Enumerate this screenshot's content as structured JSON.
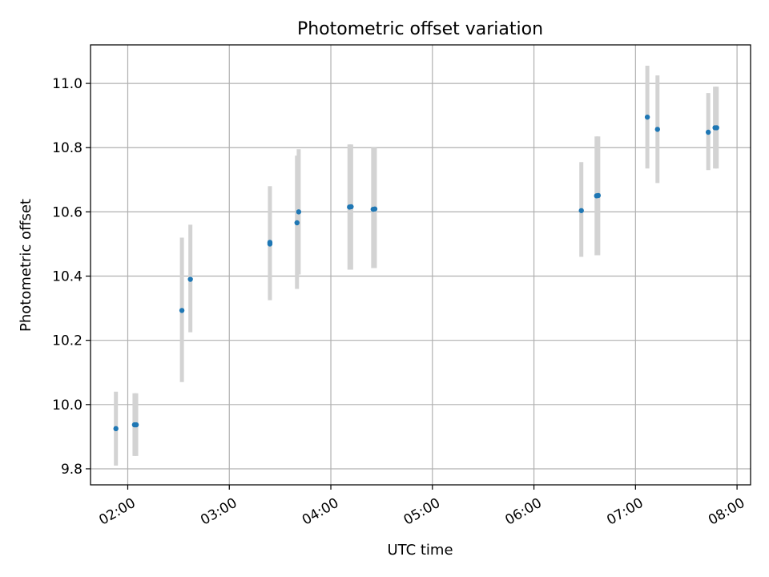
{
  "chart_data": {
    "type": "scatter",
    "title": "Photometric offset variation",
    "xlabel": "UTC time",
    "ylabel": "Photometric offset",
    "xlim": [
      "01:38",
      "08:08"
    ],
    "ylim": [
      9.75,
      11.12
    ],
    "grid": true,
    "x_ticks": [
      "02:00",
      "03:00",
      "04:00",
      "05:00",
      "06:00",
      "07:00",
      "08:00"
    ],
    "y_ticks": [
      "9.8",
      "10.0",
      "10.2",
      "10.4",
      "10.6",
      "10.8",
      "11.0"
    ],
    "colors": {
      "point": "#1f77b4",
      "errorbar": "#d3d3d3",
      "grid": "#b0b0b0"
    },
    "points": [
      {
        "x": "01:53",
        "y": 9.925,
        "ylow": 9.81,
        "yhigh": 10.04
      },
      {
        "x": "02:04",
        "y": 9.937,
        "ylow": 9.84,
        "yhigh": 10.035
      },
      {
        "x": "02:05",
        "y": 9.937,
        "ylow": 9.84,
        "yhigh": 10.035
      },
      {
        "x": "02:32",
        "y": 10.293,
        "ylow": 10.07,
        "yhigh": 10.52
      },
      {
        "x": "02:37",
        "y": 10.39,
        "ylow": 10.225,
        "yhigh": 10.56
      },
      {
        "x": "03:24",
        "y": 10.5,
        "ylow": 10.33,
        "yhigh": 10.68
      },
      {
        "x": "03:24",
        "y": 10.505,
        "ylow": 10.325,
        "yhigh": 10.68
      },
      {
        "x": "03:40",
        "y": 10.566,
        "ylow": 10.36,
        "yhigh": 10.775
      },
      {
        "x": "03:41",
        "y": 10.6,
        "ylow": 10.405,
        "yhigh": 10.795
      },
      {
        "x": "04:11",
        "y": 10.615,
        "ylow": 10.42,
        "yhigh": 10.81
      },
      {
        "x": "04:12",
        "y": 10.616,
        "ylow": 10.42,
        "yhigh": 10.81
      },
      {
        "x": "04:25",
        "y": 10.608,
        "ylow": 10.425,
        "yhigh": 10.8
      },
      {
        "x": "04:26",
        "y": 10.609,
        "ylow": 10.425,
        "yhigh": 10.8
      },
      {
        "x": "06:28",
        "y": 10.604,
        "ylow": 10.46,
        "yhigh": 10.755
      },
      {
        "x": "06:37",
        "y": 10.65,
        "ylow": 10.465,
        "yhigh": 10.835
      },
      {
        "x": "06:38",
        "y": 10.651,
        "ylow": 10.465,
        "yhigh": 10.835
      },
      {
        "x": "07:07",
        "y": 10.895,
        "ylow": 10.735,
        "yhigh": 11.055
      },
      {
        "x": "07:13",
        "y": 10.857,
        "ylow": 10.69,
        "yhigh": 11.025
      },
      {
        "x": "07:43",
        "y": 10.848,
        "ylow": 10.73,
        "yhigh": 10.97
      },
      {
        "x": "07:47",
        "y": 10.862,
        "ylow": 10.735,
        "yhigh": 10.99
      },
      {
        "x": "07:48",
        "y": 10.862,
        "ylow": 10.735,
        "yhigh": 10.99
      }
    ]
  }
}
